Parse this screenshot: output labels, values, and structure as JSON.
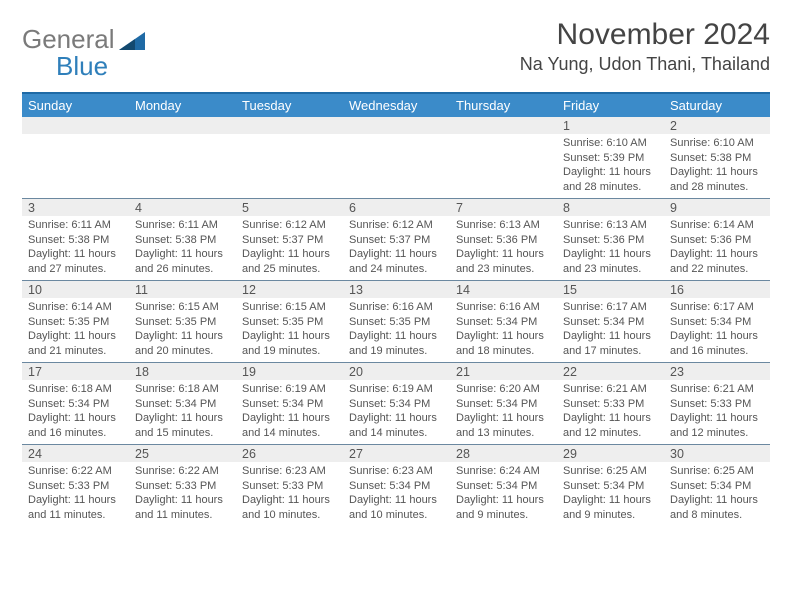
{
  "logo": {
    "word1": "General",
    "word2": "Blue",
    "tri_color": "#1f6aa5"
  },
  "header": {
    "month": "November 2024",
    "location": "Na Yung, Udon Thani, Thailand"
  },
  "style": {
    "header_bg": "#3b8bc9",
    "border_top": "#1e6aa6",
    "row_sep": "#6b88a0",
    "daynum_bg": "#eeeeee",
    "text_color": "#555555"
  },
  "days_of_week": [
    "Sunday",
    "Monday",
    "Tuesday",
    "Wednesday",
    "Thursday",
    "Friday",
    "Saturday"
  ],
  "weeks": [
    [
      null,
      null,
      null,
      null,
      null,
      {
        "n": "1",
        "sr": "6:10 AM",
        "ss": "5:39 PM",
        "dl": "11 hours and 28 minutes."
      },
      {
        "n": "2",
        "sr": "6:10 AM",
        "ss": "5:38 PM",
        "dl": "11 hours and 28 minutes."
      }
    ],
    [
      {
        "n": "3",
        "sr": "6:11 AM",
        "ss": "5:38 PM",
        "dl": "11 hours and 27 minutes."
      },
      {
        "n": "4",
        "sr": "6:11 AM",
        "ss": "5:38 PM",
        "dl": "11 hours and 26 minutes."
      },
      {
        "n": "5",
        "sr": "6:12 AM",
        "ss": "5:37 PM",
        "dl": "11 hours and 25 minutes."
      },
      {
        "n": "6",
        "sr": "6:12 AM",
        "ss": "5:37 PM",
        "dl": "11 hours and 24 minutes."
      },
      {
        "n": "7",
        "sr": "6:13 AM",
        "ss": "5:36 PM",
        "dl": "11 hours and 23 minutes."
      },
      {
        "n": "8",
        "sr": "6:13 AM",
        "ss": "5:36 PM",
        "dl": "11 hours and 23 minutes."
      },
      {
        "n": "9",
        "sr": "6:14 AM",
        "ss": "5:36 PM",
        "dl": "11 hours and 22 minutes."
      }
    ],
    [
      {
        "n": "10",
        "sr": "6:14 AM",
        "ss": "5:35 PM",
        "dl": "11 hours and 21 minutes."
      },
      {
        "n": "11",
        "sr": "6:15 AM",
        "ss": "5:35 PM",
        "dl": "11 hours and 20 minutes."
      },
      {
        "n": "12",
        "sr": "6:15 AM",
        "ss": "5:35 PM",
        "dl": "11 hours and 19 minutes."
      },
      {
        "n": "13",
        "sr": "6:16 AM",
        "ss": "5:35 PM",
        "dl": "11 hours and 19 minutes."
      },
      {
        "n": "14",
        "sr": "6:16 AM",
        "ss": "5:34 PM",
        "dl": "11 hours and 18 minutes."
      },
      {
        "n": "15",
        "sr": "6:17 AM",
        "ss": "5:34 PM",
        "dl": "11 hours and 17 minutes."
      },
      {
        "n": "16",
        "sr": "6:17 AM",
        "ss": "5:34 PM",
        "dl": "11 hours and 16 minutes."
      }
    ],
    [
      {
        "n": "17",
        "sr": "6:18 AM",
        "ss": "5:34 PM",
        "dl": "11 hours and 16 minutes."
      },
      {
        "n": "18",
        "sr": "6:18 AM",
        "ss": "5:34 PM",
        "dl": "11 hours and 15 minutes."
      },
      {
        "n": "19",
        "sr": "6:19 AM",
        "ss": "5:34 PM",
        "dl": "11 hours and 14 minutes."
      },
      {
        "n": "20",
        "sr": "6:19 AM",
        "ss": "5:34 PM",
        "dl": "11 hours and 14 minutes."
      },
      {
        "n": "21",
        "sr": "6:20 AM",
        "ss": "5:34 PM",
        "dl": "11 hours and 13 minutes."
      },
      {
        "n": "22",
        "sr": "6:21 AM",
        "ss": "5:33 PM",
        "dl": "11 hours and 12 minutes."
      },
      {
        "n": "23",
        "sr": "6:21 AM",
        "ss": "5:33 PM",
        "dl": "11 hours and 12 minutes."
      }
    ],
    [
      {
        "n": "24",
        "sr": "6:22 AM",
        "ss": "5:33 PM",
        "dl": "11 hours and 11 minutes."
      },
      {
        "n": "25",
        "sr": "6:22 AM",
        "ss": "5:33 PM",
        "dl": "11 hours and 11 minutes."
      },
      {
        "n": "26",
        "sr": "6:23 AM",
        "ss": "5:33 PM",
        "dl": "11 hours and 10 minutes."
      },
      {
        "n": "27",
        "sr": "6:23 AM",
        "ss": "5:34 PM",
        "dl": "11 hours and 10 minutes."
      },
      {
        "n": "28",
        "sr": "6:24 AM",
        "ss": "5:34 PM",
        "dl": "11 hours and 9 minutes."
      },
      {
        "n": "29",
        "sr": "6:25 AM",
        "ss": "5:34 PM",
        "dl": "11 hours and 9 minutes."
      },
      {
        "n": "30",
        "sr": "6:25 AM",
        "ss": "5:34 PM",
        "dl": "11 hours and 8 minutes."
      }
    ]
  ],
  "labels": {
    "sunrise": "Sunrise:",
    "sunset": "Sunset:",
    "daylight": "Daylight:"
  }
}
